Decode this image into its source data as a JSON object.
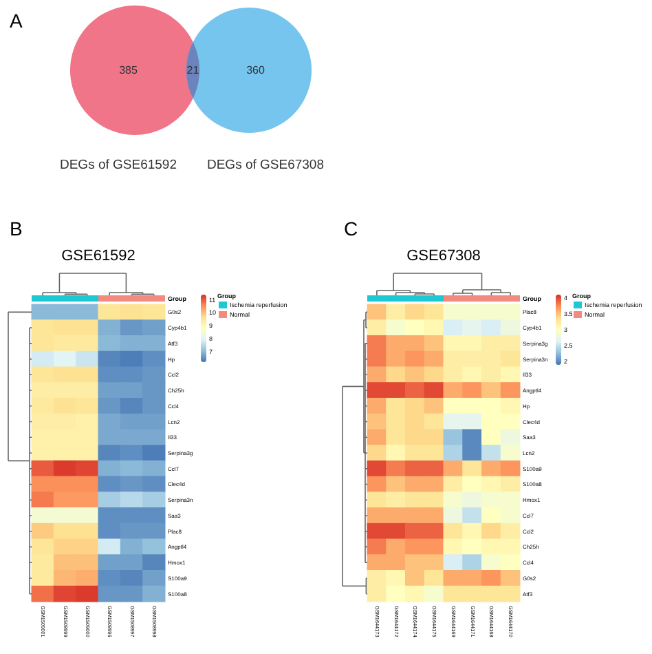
{
  "chart_data": [
    {
      "type": "other",
      "annotations": [
        "A"
      ],
      "categories": [
        "DEGs of GSE61592",
        null,
        "DEGs of GSE67308"
      ],
      "values": [
        385,
        21,
        360
      ],
      "colors": [
        "#f07589",
        "#6c84bd",
        "#75c5ee"
      ],
      "data_labels": true
    },
    {
      "type": "heatmap",
      "title": "GSE61592",
      "annotations": [
        "B",
        "Group",
        "Group",
        "Ischemia reperfusion",
        "Normal"
      ],
      "categories": [
        "GSM1509001",
        "GSM1508999",
        "GSM1509000",
        "GSM1508996",
        "GSM1508997",
        "GSM1508998"
      ],
      "y_categories": [
        "G0s2",
        "Cyp4b1",
        "Atf3",
        "Hp",
        "Ccl2",
        "Ch25h",
        "Ccl4",
        "Lcn2",
        "Il33",
        "Serpina3g",
        "Ccl7",
        "Clec4d",
        "Serpina3n",
        "Saa3",
        "Plac8",
        "Angptl4",
        "Hmox1",
        "S100a9",
        "S100a8"
      ],
      "cells": [
        [
          7.0,
          7.0,
          7.0,
          9.5,
          9.6,
          9.5
        ],
        [
          9.5,
          9.6,
          9.6,
          6.9,
          6.6,
          6.7
        ],
        [
          9.5,
          9.4,
          9.4,
          7.0,
          6.9,
          6.9
        ],
        [
          7.8,
          8.0,
          7.7,
          6.4,
          6.3,
          6.5
        ],
        [
          9.5,
          9.6,
          9.6,
          6.5,
          6.5,
          6.6
        ],
        [
          9.3,
          9.3,
          9.3,
          6.7,
          6.7,
          6.6
        ],
        [
          9.4,
          9.6,
          9.5,
          6.6,
          6.4,
          6.6
        ],
        [
          9.3,
          9.3,
          9.2,
          6.8,
          6.7,
          6.7
        ],
        [
          9.2,
          9.2,
          9.2,
          6.8,
          6.8,
          6.8
        ],
        [
          9.2,
          9.2,
          9.2,
          6.4,
          6.5,
          6.3
        ],
        [
          11.0,
          11.3,
          11.2,
          6.9,
          7.0,
          6.9
        ],
        [
          10.5,
          10.5,
          10.5,
          6.5,
          6.6,
          6.5
        ],
        [
          10.7,
          10.4,
          10.4,
          7.3,
          7.5,
          7.3
        ],
        [
          8.5,
          8.5,
          8.5,
          6.5,
          6.5,
          6.5
        ],
        [
          9.9,
          9.6,
          9.6,
          6.5,
          6.6,
          6.6
        ],
        [
          9.5,
          9.8,
          9.8,
          7.8,
          6.9,
          7.1
        ],
        [
          9.4,
          10.0,
          10.0,
          6.7,
          6.7,
          6.4
        ],
        [
          9.4,
          10.1,
          10.2,
          6.5,
          6.4,
          6.7
        ],
        [
          10.8,
          11.2,
          11.3,
          6.6,
          6.6,
          6.9
        ]
      ],
      "clim": [
        6.2,
        11.4
      ],
      "cticks": [
        7,
        8,
        9,
        10,
        11
      ]
    },
    {
      "type": "heatmap",
      "title": "GSE67308",
      "annotations": [
        "C",
        "Group",
        "Group",
        "Ischemia reperfusion",
        "Normal"
      ],
      "categories": [
        "GSM1644173",
        "GSM1644172",
        "GSM1644174",
        "GSM1644175",
        "GSM1644169",
        "GSM1644171",
        "GSM1644168",
        "GSM1644170"
      ],
      "y_categories": [
        "Plac8",
        "Cyp4b1",
        "Serpina3g",
        "Serpina3n",
        "Il33",
        "Angptl4",
        "Hp",
        "Clec4d",
        "Saa3",
        "Lcn2",
        "S100a9",
        "S100a8",
        "Hmox1",
        "Ccl7",
        "Ccl2",
        "Ch25h",
        "Ccl4",
        "G0s2",
        "Atf3"
      ],
      "cells": [
        [
          3.5,
          3.2,
          3.4,
          3.3,
          2.9,
          2.9,
          2.9,
          2.9
        ],
        [
          3.2,
          2.9,
          3.0,
          3.1,
          2.6,
          2.7,
          2.6,
          2.8
        ],
        [
          3.8,
          3.6,
          3.6,
          3.5,
          3.1,
          3.1,
          3.2,
          3.2
        ],
        [
          3.8,
          3.6,
          3.7,
          3.6,
          3.2,
          3.2,
          3.2,
          3.3
        ],
        [
          3.6,
          3.4,
          3.5,
          3.4,
          3.2,
          3.1,
          3.2,
          3.1
        ],
        [
          4.0,
          4.0,
          3.9,
          4.0,
          3.6,
          3.7,
          3.5,
          3.7
        ],
        [
          3.6,
          3.3,
          3.4,
          3.5,
          3.0,
          3.0,
          3.0,
          3.1
        ],
        [
          3.5,
          3.3,
          3.4,
          3.3,
          2.7,
          2.7,
          3.0,
          3.0
        ],
        [
          3.6,
          3.3,
          3.4,
          3.4,
          2.3,
          2.0,
          3.0,
          2.8
        ],
        [
          3.4,
          3.1,
          3.3,
          3.3,
          2.4,
          2.0,
          2.5,
          2.9
        ],
        [
          4.0,
          3.8,
          3.9,
          3.9,
          3.6,
          3.3,
          3.6,
          3.7
        ],
        [
          3.7,
          3.5,
          3.6,
          3.6,
          3.2,
          3.0,
          3.1,
          3.2
        ],
        [
          3.3,
          3.2,
          3.3,
          3.3,
          2.9,
          2.8,
          2.9,
          2.9
        ],
        [
          3.6,
          3.6,
          3.6,
          3.6,
          2.8,
          2.5,
          3.0,
          2.9
        ],
        [
          4.0,
          4.0,
          3.9,
          3.9,
          3.3,
          3.1,
          3.4,
          3.2
        ],
        [
          3.8,
          3.6,
          3.7,
          3.7,
          3.1,
          3.0,
          3.1,
          3.1
        ],
        [
          3.6,
          3.6,
          3.5,
          3.5,
          2.6,
          2.4,
          2.9,
          3.0
        ],
        [
          3.2,
          3.1,
          3.5,
          3.3,
          3.6,
          3.6,
          3.7,
          3.5
        ],
        [
          3.2,
          3.0,
          3.1,
          2.9,
          3.3,
          3.3,
          3.3,
          3.3
        ]
      ],
      "clim": [
        1.9,
        4.1
      ],
      "cticks": [
        2,
        2.5,
        3,
        3.5,
        4
      ]
    }
  ]
}
